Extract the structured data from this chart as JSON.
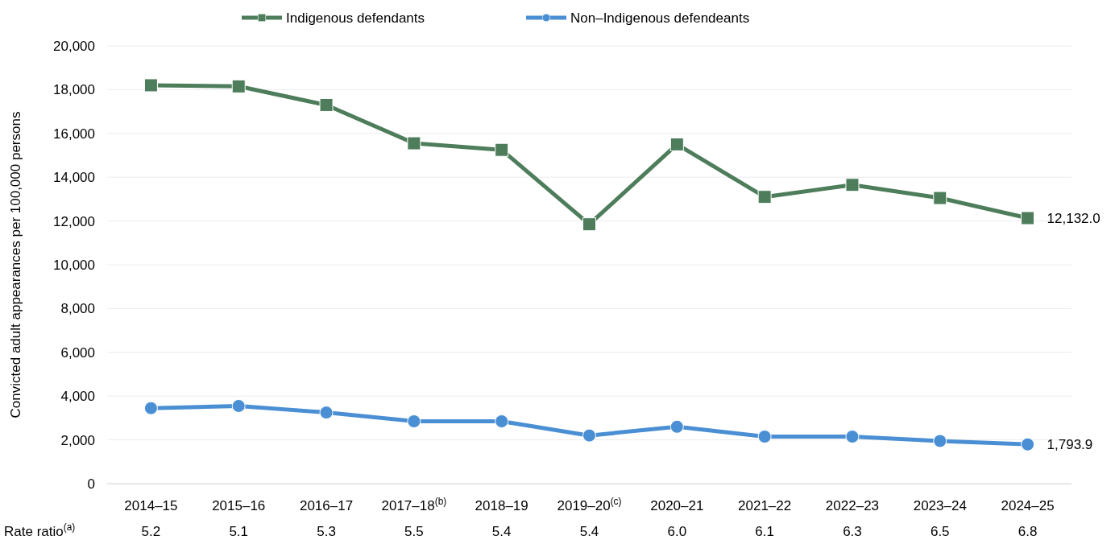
{
  "chart_data": {
    "type": "line",
    "ylabel": "Convicted adult appearances per 100,000 persons",
    "categories": [
      "2014–15",
      "2015–16",
      "2016–17",
      "2017–18$^{(b)}$",
      "2018–19",
      "2019–20$^{(c)}$",
      "2020–21",
      "2021–22",
      "2022–23",
      "2023–24",
      "2024–25"
    ],
    "series": [
      {
        "name": "Indigenous defendants",
        "color": "#4e7d5b",
        "marker": "square",
        "values": [
          18200,
          18150,
          17300,
          15550,
          15250,
          11850,
          15500,
          13100,
          13650,
          13050,
          12132.0
        ],
        "value_labels": [
          null,
          null,
          null,
          null,
          null,
          null,
          null,
          null,
          null,
          null,
          "12,132.0"
        ]
      },
      {
        "name": "Non–Indigenous defendeants",
        "color": "#4a8fd4",
        "marker": "circle",
        "values": [
          3450,
          3550,
          3250,
          2850,
          2850,
          2200,
          2600,
          2150,
          2150,
          1950,
          1793.9
        ],
        "value_labels": [
          null,
          null,
          null,
          null,
          null,
          null,
          null,
          null,
          null,
          null,
          "1,793.9"
        ]
      }
    ],
    "ylim": [
      0,
      20000
    ],
    "yticks": [
      {
        "value": 0,
        "label": "0"
      },
      {
        "value": 2000,
        "label": "2,000"
      },
      {
        "value": 4000,
        "label": "4,000"
      },
      {
        "value": 6000,
        "label": "6,000"
      },
      {
        "value": 8000,
        "label": "8,000"
      },
      {
        "value": 10000,
        "label": "10,000"
      },
      {
        "value": 12000,
        "label": "12,000"
      },
      {
        "value": 14000,
        "label": "14,000"
      },
      {
        "value": 16000,
        "label": "16,000"
      },
      {
        "value": 18000,
        "label": "18,000"
      },
      {
        "value": 20000,
        "label": "20,000"
      }
    ],
    "grid": "y",
    "legend": "top",
    "line_style": "solid",
    "annotations": [
      "Rate ratio$^{(a)}$",
      "5.2",
      "5.1",
      "5.3",
      "5.5",
      "5.4",
      "5.4",
      "6.0",
      "6.1",
      "6.3",
      "6.5",
      "6.8"
    ]
  }
}
